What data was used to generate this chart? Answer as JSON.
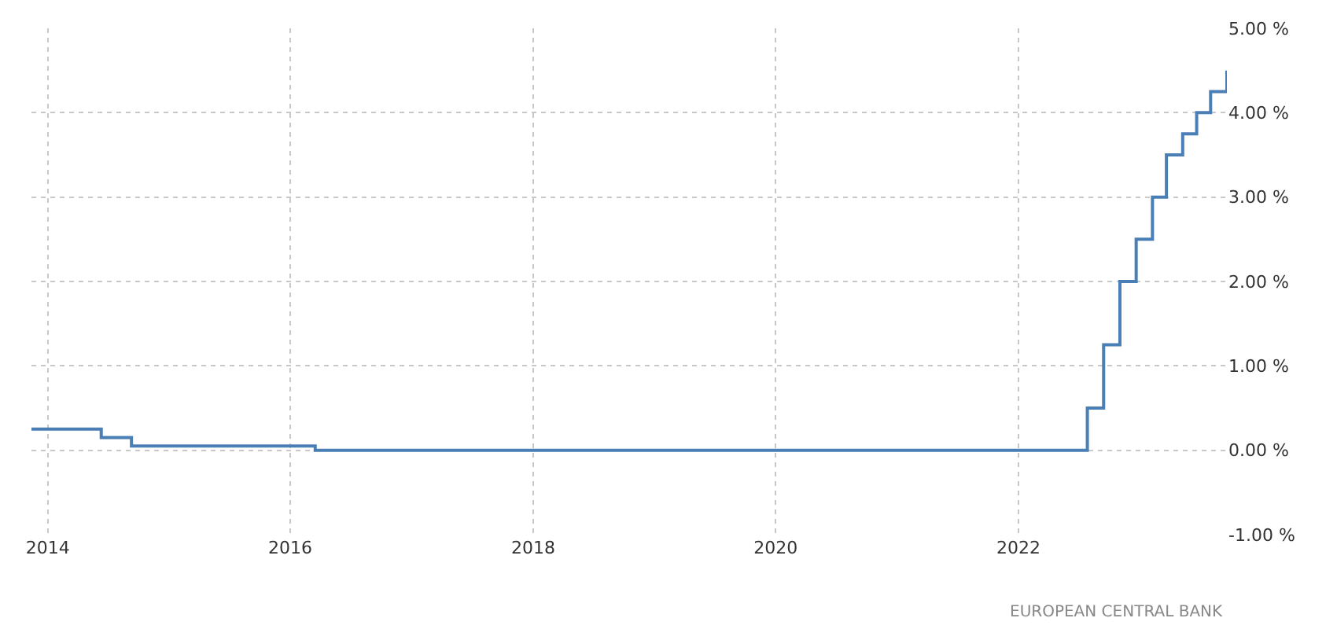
{
  "chart_data": {
    "type": "step",
    "x": [
      "2013-11-13",
      "2014-06-11",
      "2014-09-10",
      "2016-03-16",
      "2022-07-27",
      "2022-09-14",
      "2022-11-02",
      "2022-12-21",
      "2023-02-08",
      "2023-03-22",
      "2023-05-10",
      "2023-06-21",
      "2023-08-02",
      "2023-09-20"
    ],
    "series": [
      {
        "color": "#4a7fb5",
        "values": [
          0.25,
          0.15,
          0.05,
          0.0,
          0.5,
          1.25,
          2.0,
          2.5,
          3.0,
          3.5,
          3.75,
          4.0,
          4.25,
          4.5
        ]
      }
    ],
    "xlim": [
      "2013-11-13",
      "2023-09-20"
    ],
    "xticks": [
      {
        "value": "2014-01-01",
        "label": "2014"
      },
      {
        "value": "2016-01-01",
        "label": "2016"
      },
      {
        "value": "2018-01-01",
        "label": "2018"
      },
      {
        "value": "2020-01-01",
        "label": "2020"
      },
      {
        "value": "2022-01-01",
        "label": "2022"
      }
    ],
    "ylim": [
      -1,
      5
    ],
    "yticks": [
      {
        "value": -1,
        "label": "-1.00 %"
      },
      {
        "value": 0,
        "label": "0.00 %"
      },
      {
        "value": 1,
        "label": "1.00 %"
      },
      {
        "value": 2,
        "label": "2.00 %"
      },
      {
        "value": 3,
        "label": "3.00 %"
      },
      {
        "value": 4,
        "label": "4.00 %"
      },
      {
        "value": 5,
        "label": "5.00 %"
      }
    ],
    "grid": true,
    "legend": false,
    "line_style": "solid",
    "marker": "none",
    "annotations": [
      "EUROPEAN CENTRAL BANK"
    ]
  }
}
